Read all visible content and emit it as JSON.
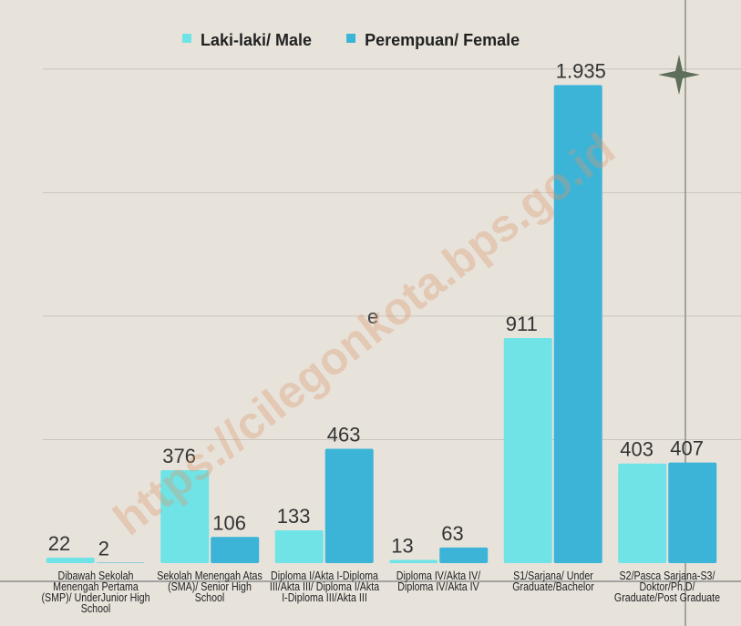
{
  "chart_data": {
    "type": "bar",
    "legend": "top",
    "categories": [
      "Dibawah Sekolah Menengah Pertama (SMP)/ UnderJunior High School",
      "Sekolah Menengah Atas (SMA)/ Senior High School",
      "Diploma I/Akta I-Diploma III/Akta III/ Diploma I/Akta I-Diploma III/Akta III",
      "Diploma IV/Akta IV/ Diploma IV/Akta IV",
      "S1/Sarjana/ Under Graduate/Bachelor",
      "S2/Pasca Sarjana-S3/ Doktor/Ph.D/ Graduate/Post Graduate"
    ],
    "series": [
      {
        "name": "Laki-laki/ Male",
        "color": "#6fe3e6",
        "values": [
          22,
          376,
          133,
          13,
          911,
          403
        ]
      },
      {
        "name": "Perempuan/ Female",
        "color": "#3bb4d8",
        "values": [
          2,
          106,
          463,
          63,
          1935,
          407
        ],
        "value_labels": [
          "2",
          "106",
          "463",
          "63",
          "1.935",
          "407"
        ]
      }
    ],
    "ylim": [
      0,
      2250
    ],
    "yticks": [
      500,
      1000,
      1500,
      2000
    ],
    "grid": true,
    "annotation": "e",
    "watermark": "https://cilegonkota.bps.go.id"
  }
}
